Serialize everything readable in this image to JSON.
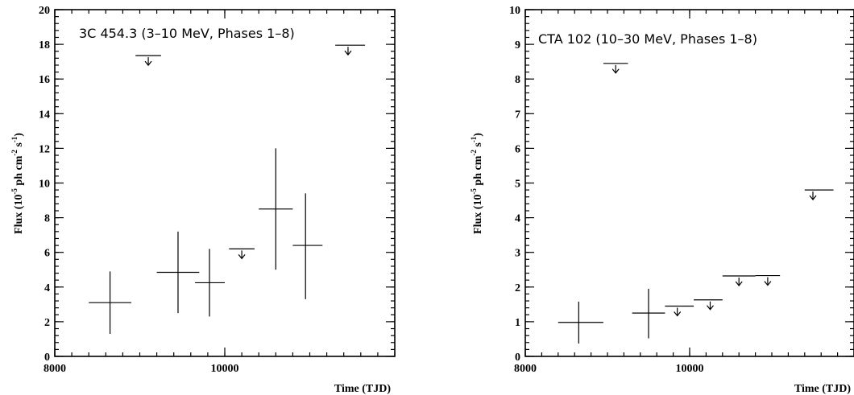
{
  "chart_data": [
    {
      "type": "scatter",
      "title": "3C 454.3 (3–10 MeV, Phases 1–8)",
      "xlabel": "Time (TJD)",
      "ylabel_parts": [
        "Flux (10",
        "-5",
        " ph cm",
        "-2",
        " s",
        "-1",
        ")"
      ],
      "xlim": [
        8000,
        12000
      ],
      "ylim": [
        0,
        20
      ],
      "xticks": [
        8000,
        10000
      ],
      "yticks": [
        0,
        2,
        4,
        6,
        8,
        10,
        12,
        14,
        16,
        18,
        20
      ],
      "measurements": [
        {
          "x": 8650,
          "x_lo": 8400,
          "x_hi": 8900,
          "y": 3.1,
          "y_lo": 1.3,
          "y_hi": 4.9
        },
        {
          "x": 9450,
          "x_lo": 9200,
          "x_hi": 9700,
          "y": 4.85,
          "y_lo": 2.5,
          "y_hi": 7.2
        },
        {
          "x": 9820,
          "x_lo": 9650,
          "x_hi": 10000,
          "y": 4.25,
          "y_lo": 2.3,
          "y_hi": 6.2
        },
        {
          "x": 10600,
          "x_lo": 10400,
          "x_hi": 10800,
          "y": 8.5,
          "y_lo": 5.0,
          "y_hi": 12.0
        },
        {
          "x": 10950,
          "x_lo": 10800,
          "x_hi": 11150,
          "y": 6.4,
          "y_lo": 3.3,
          "y_hi": 9.4
        }
      ],
      "upper_limits": [
        {
          "x": 9100,
          "x_lo": 8950,
          "x_hi": 9250,
          "y": 17.35
        },
        {
          "x": 10200,
          "x_lo": 10050,
          "x_hi": 10350,
          "y": 6.2
        },
        {
          "x": 11450,
          "x_lo": 11300,
          "x_hi": 11650,
          "y": 17.95
        }
      ]
    },
    {
      "type": "scatter",
      "title": "CTA 102 (10–30 MeV, Phases 1–8)",
      "xlabel": "Time (TJD)",
      "ylabel_parts": [
        "Flux (10",
        "-5",
        " ph cm",
        "-2",
        " s",
        "-1",
        ")"
      ],
      "xlim": [
        8000,
        12000
      ],
      "ylim": [
        0,
        10
      ],
      "xticks": [
        8000,
        10000
      ],
      "yticks": [
        0,
        1,
        2,
        3,
        4,
        5,
        6,
        7,
        8,
        9,
        10
      ],
      "measurements": [
        {
          "x": 8650,
          "x_lo": 8400,
          "x_hi": 8950,
          "y": 0.98,
          "y_lo": 0.37,
          "y_hi": 1.58
        },
        {
          "x": 9500,
          "x_lo": 9300,
          "x_hi": 9700,
          "y": 1.25,
          "y_lo": 0.52,
          "y_hi": 1.95
        }
      ],
      "upper_limits": [
        {
          "x": 9100,
          "x_lo": 8950,
          "x_hi": 9250,
          "y": 8.45
        },
        {
          "x": 9850,
          "x_lo": 9700,
          "x_hi": 10050,
          "y": 1.45
        },
        {
          "x": 10250,
          "x_lo": 10050,
          "x_hi": 10400,
          "y": 1.63
        },
        {
          "x": 10600,
          "x_lo": 10400,
          "x_hi": 10800,
          "y": 2.32
        },
        {
          "x": 10950,
          "x_lo": 10800,
          "x_hi": 11100,
          "y": 2.33
        },
        {
          "x": 11500,
          "x_lo": 11400,
          "x_hi": 11750,
          "y": 4.8
        }
      ]
    }
  ]
}
